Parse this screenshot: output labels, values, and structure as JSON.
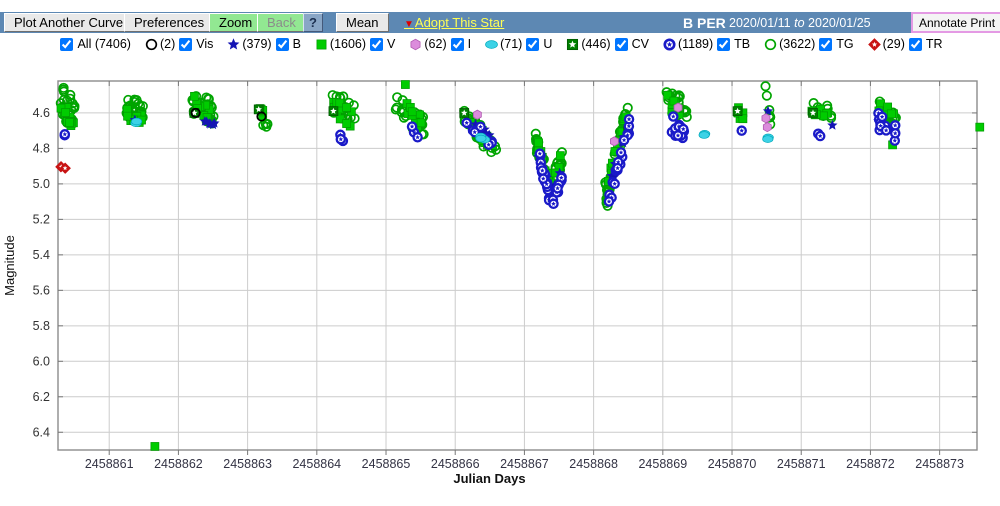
{
  "toolbar": {
    "plot_another_curve": "Plot Another Curve",
    "preferences": "Preferences",
    "zoom": "Zoom",
    "back": "Back",
    "help": "?",
    "mean": "Mean",
    "adopt_link": "Adopt This Star",
    "star_name": "B PER",
    "date_start": "2020/01/11",
    "date_to_word": "to",
    "date_end": "2020/01/25",
    "annotate_print": "Annotate Print",
    "bar_color": "#5d88b3",
    "adopt_color": "#ffff55"
  },
  "legend": {
    "items": [
      {
        "band": "All",
        "label": "All (7406)",
        "count": null,
        "icon": null,
        "checked": true
      },
      {
        "band": "Vis",
        "label": "Vis",
        "count": "(2)",
        "icon": "circle-open-black",
        "checked": true
      },
      {
        "band": "B",
        "label": "B",
        "count": "(379)",
        "icon": "star-blue",
        "checked": true
      },
      {
        "band": "V",
        "label": "V",
        "count": "(1606)",
        "icon": "square-green",
        "checked": true
      },
      {
        "band": "I",
        "label": "I",
        "count": "(62)",
        "icon": "hexagon-violet",
        "checked": true
      },
      {
        "band": "U",
        "label": "U",
        "count": "(71)",
        "icon": "ellipse-cyan",
        "checked": true
      },
      {
        "band": "CV",
        "label": "CV",
        "count": "(446)",
        "icon": "square-star-green",
        "checked": true
      },
      {
        "band": "TB",
        "label": "TB",
        "count": "(1189)",
        "icon": "ring-star-blue",
        "checked": true
      },
      {
        "band": "TG",
        "label": "TG",
        "count": "(3622)",
        "icon": "circle-open-green",
        "checked": true
      },
      {
        "band": "TR",
        "label": "TR",
        "count": "(29)",
        "icon": "diamond-open-red",
        "checked": true
      }
    ]
  },
  "chart_data": {
    "type": "scatter",
    "title": "",
    "xlabel": "Julian Days",
    "ylabel": "Magnitude",
    "x_range": [
      2458860.26,
      2458873.54
    ],
    "y_range": [
      4.42,
      6.5
    ],
    "y_inverted": true,
    "grid": true,
    "x_ticks": [
      2458861,
      2458862,
      2458863,
      2458864,
      2458865,
      2458866,
      2458867,
      2458868,
      2458869,
      2458870,
      2458871,
      2458872,
      2458873
    ],
    "y_ticks": [
      4.6,
      4.8,
      5.0,
      5.2,
      5.4,
      5.6,
      5.8,
      6.0,
      6.2,
      6.4
    ],
    "series": [
      {
        "band": "TG",
        "marker": "circleO",
        "color": "#00a400",
        "segments": [
          [
            2458860.28,
            2458860.52,
            4.52,
            4.62,
            22,
            0.09
          ],
          [
            2458861.22,
            2458861.5,
            4.56,
            4.6,
            24,
            0.07
          ],
          [
            2458862.2,
            2458862.52,
            4.54,
            4.6,
            26,
            0.07
          ],
          [
            2458863.22,
            2458863.3,
            4.64,
            4.7,
            4,
            0.04
          ],
          [
            2458864.22,
            2458864.55,
            4.54,
            4.6,
            24,
            0.07
          ],
          [
            2458865.12,
            2458865.55,
            4.55,
            4.68,
            22,
            0.06
          ],
          [
            2458866.1,
            2458866.6,
            4.58,
            4.84,
            30,
            0.05
          ],
          [
            2458867.15,
            2458867.38,
            4.74,
            5.02,
            24,
            0.05
          ],
          [
            2458867.38,
            2458867.55,
            5.02,
            4.84,
            16,
            0.05
          ],
          [
            2458868.16,
            2458868.22,
            5.02,
            5.12,
            8,
            0.05
          ],
          [
            2458868.18,
            2458868.5,
            5.08,
            4.56,
            36,
            0.05
          ],
          [
            2458869.05,
            2458869.35,
            4.52,
            4.6,
            20,
            0.07
          ],
          [
            2458870.48,
            2458870.56,
            4.46,
            4.66,
            9,
            0.03
          ],
          [
            2458871.1,
            2458871.45,
            4.56,
            4.62,
            9,
            0.05
          ],
          [
            2458872.05,
            2458872.4,
            4.54,
            4.68,
            18,
            0.07
          ]
        ]
      },
      {
        "band": "V",
        "marker": "square",
        "color": "#00cc00",
        "segments": [
          [
            2458860.28,
            2458860.5,
            4.57,
            4.64,
            12,
            0.05
          ],
          [
            2458861.25,
            2458861.48,
            4.58,
            4.64,
            11,
            0.05
          ],
          [
            2458861.66,
            2458861.66,
            6.48,
            6.48,
            1,
            0
          ],
          [
            2458862.22,
            2458862.5,
            4.55,
            4.62,
            12,
            0.05
          ],
          [
            2458863.15,
            2458863.28,
            4.59,
            4.61,
            6,
            0.02
          ],
          [
            2458864.22,
            2458864.5,
            4.56,
            4.63,
            12,
            0.05
          ],
          [
            2458865.28,
            2458865.28,
            4.44,
            4.44,
            1,
            0
          ],
          [
            2458865.3,
            2458865.55,
            4.57,
            4.68,
            9,
            0.04
          ],
          [
            2458866.12,
            2458866.58,
            4.59,
            4.82,
            13,
            0.03
          ],
          [
            2458867.18,
            2458867.38,
            4.76,
            4.99,
            9,
            0.03
          ],
          [
            2458867.38,
            2458867.52,
            4.99,
            4.86,
            5,
            0.03
          ],
          [
            2458868.2,
            2458868.48,
            5.0,
            4.58,
            13,
            0.03
          ],
          [
            2458869.06,
            2458869.3,
            4.53,
            4.6,
            9,
            0.04
          ],
          [
            2458870.06,
            2458870.22,
            4.59,
            4.63,
            7,
            0.03
          ],
          [
            2458871.15,
            2458871.4,
            4.58,
            4.62,
            7,
            0.03
          ],
          [
            2458872.06,
            2458872.35,
            4.55,
            4.62,
            9,
            0.04
          ],
          [
            2458872.32,
            2458872.32,
            4.78,
            4.78,
            1,
            0
          ],
          [
            2458873.58,
            2458873.58,
            4.68,
            4.68,
            1,
            0
          ]
        ]
      },
      {
        "band": "CV",
        "marker": "squareStar",
        "color": "#008000",
        "segments": [
          [
            2458862.23,
            2458862.23,
            4.6,
            4.6,
            1,
            0
          ],
          [
            2458863.16,
            2458863.16,
            4.58,
            4.58,
            1,
            0
          ],
          [
            2458864.24,
            2458864.24,
            4.59,
            4.59,
            1,
            0
          ],
          [
            2458866.13,
            2458866.13,
            4.6,
            4.6,
            1,
            0
          ],
          [
            2458868.5,
            2458868.5,
            4.7,
            4.7,
            1,
            0
          ],
          [
            2458870.08,
            2458870.08,
            4.59,
            4.59,
            1,
            0
          ],
          [
            2458871.17,
            2458871.17,
            4.6,
            4.6,
            1,
            0
          ]
        ]
      },
      {
        "band": "B",
        "marker": "star",
        "color": "#1414b4",
        "segments": [
          [
            2458861.37,
            2458861.37,
            4.64,
            4.64,
            1,
            0
          ],
          [
            2458862.38,
            2458862.52,
            4.63,
            4.67,
            6,
            0.02
          ],
          [
            2458866.2,
            2458866.5,
            4.66,
            4.74,
            7,
            0.03
          ],
          [
            2458867.2,
            2458867.38,
            4.82,
            5.06,
            7,
            0.03
          ],
          [
            2458867.38,
            2458867.52,
            5.06,
            4.94,
            4,
            0.03
          ],
          [
            2458868.22,
            2458868.48,
            5.04,
            4.68,
            7,
            0.03
          ],
          [
            2458870.52,
            2458870.52,
            4.59,
            4.59,
            1,
            0
          ],
          [
            2458871.45,
            2458871.45,
            4.67,
            4.67,
            1,
            0
          ],
          [
            2458872.1,
            2458872.3,
            4.64,
            4.69,
            4,
            0.02
          ]
        ]
      },
      {
        "band": "TB",
        "marker": "ringStar",
        "color": "#1a1ac8",
        "segments": [
          [
            2458860.33,
            2458860.39,
            4.72,
            4.73,
            2,
            0.01
          ],
          [
            2458864.32,
            2458864.42,
            4.73,
            4.76,
            3,
            0.02
          ],
          [
            2458865.36,
            2458865.48,
            4.69,
            4.73,
            3,
            0.02
          ],
          [
            2458866.15,
            2458866.55,
            4.64,
            4.76,
            8,
            0.04
          ],
          [
            2458867.2,
            2458867.4,
            4.82,
            5.14,
            22,
            0.04
          ],
          [
            2458867.4,
            2458867.55,
            5.14,
            4.98,
            10,
            0.04
          ],
          [
            2458868.22,
            2458868.52,
            5.1,
            4.66,
            18,
            0.04
          ],
          [
            2458869.1,
            2458869.32,
            4.64,
            4.74,
            14,
            0.06
          ],
          [
            2458870.14,
            2458870.14,
            4.7,
            4.7,
            1,
            0
          ],
          [
            2458871.24,
            2458871.3,
            4.72,
            4.74,
            2,
            0.01
          ],
          [
            2458872.1,
            2458872.36,
            4.64,
            4.72,
            12,
            0.05
          ]
        ]
      },
      {
        "band": "U",
        "marker": "ellipse",
        "color": "#3cd2e6",
        "segments": [
          [
            2458861.38,
            2458861.42,
            4.65,
            4.67,
            2,
            0.01
          ],
          [
            2458866.34,
            2458866.46,
            4.71,
            4.77,
            3,
            0.02
          ],
          [
            2458869.58,
            2458869.62,
            4.71,
            4.73,
            2,
            0.01
          ],
          [
            2458870.49,
            2458870.54,
            4.72,
            4.76,
            2,
            0.01
          ]
        ]
      },
      {
        "band": "I",
        "marker": "hex",
        "color": "#dc8cdc",
        "segments": [
          [
            2458866.32,
            2458866.32,
            4.61,
            4.61,
            1,
            0
          ],
          [
            2458868.3,
            2458868.3,
            4.76,
            4.76,
            1,
            0
          ],
          [
            2458869.22,
            2458869.22,
            4.57,
            4.57,
            1,
            0
          ],
          [
            2458870.49,
            2458870.49,
            4.63,
            4.63,
            1,
            0
          ],
          [
            2458870.51,
            2458870.51,
            4.68,
            4.68,
            1,
            0
          ]
        ]
      },
      {
        "band": "Vis",
        "marker": "circleO",
        "color": "#000000",
        "segments": [
          [
            2458862.25,
            2458862.25,
            4.6,
            4.6,
            1,
            0
          ],
          [
            2458863.2,
            2458863.2,
            4.62,
            4.62,
            1,
            0
          ]
        ]
      },
      {
        "band": "TR",
        "marker": "diamondStar",
        "color": "#c81414",
        "segments": [
          [
            2458860.3,
            2458860.33,
            4.9,
            4.9,
            2,
            0.005
          ],
          [
            2458860.36,
            2458860.38,
            4.91,
            4.91,
            2,
            0.005
          ]
        ]
      }
    ]
  }
}
